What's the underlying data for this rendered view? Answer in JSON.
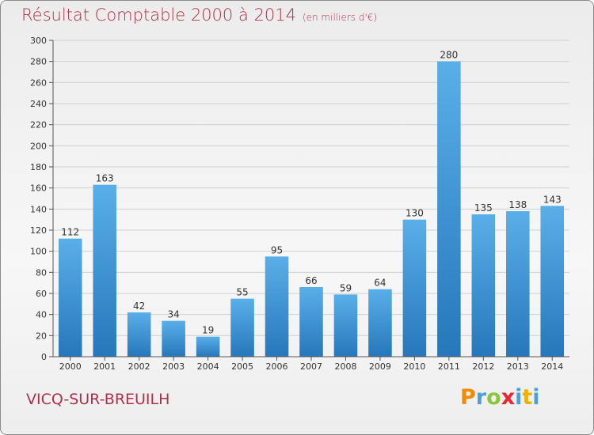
{
  "title": "Résultat Comptable 2000 à 2014",
  "units": "(en milliers d'€)",
  "commune": "VICQ-SUR-BREUILH",
  "logo": {
    "text": "Proxiti",
    "letters": [
      {
        "ch": "P",
        "color": "#f08a00"
      },
      {
        "ch": "r",
        "color": "#4aa0d8"
      },
      {
        "ch": "o",
        "color": "#8cc63e"
      },
      {
        "ch": "x",
        "color": "#e8262f"
      },
      {
        "ch": "i",
        "color": "#4aa0d8"
      },
      {
        "ch": "t",
        "color": "#f0b000"
      },
      {
        "ch": "i",
        "color": "#4aa0d8"
      }
    ]
  },
  "colors": {
    "bar_top": "#5aafe8",
    "bar_bottom": "#2677bb",
    "grid": "#d0d0d0",
    "axis": "#555555",
    "title": "#b0304a"
  },
  "chart_data": {
    "type": "bar",
    "categories": [
      "2000",
      "2001",
      "2002",
      "2003",
      "2004",
      "2005",
      "2006",
      "2007",
      "2008",
      "2009",
      "2010",
      "2011",
      "2012",
      "2013",
      "2014"
    ],
    "values": [
      112,
      163,
      42,
      34,
      19,
      55,
      95,
      66,
      59,
      64,
      130,
      280,
      135,
      138,
      143
    ],
    "title": "Résultat Comptable 2000 à 2014",
    "subtitle": "(en milliers d'€)",
    "ylim": [
      0,
      300
    ],
    "yticks": [
      0,
      20,
      40,
      60,
      80,
      100,
      120,
      140,
      160,
      180,
      200,
      220,
      240,
      260,
      280,
      300
    ],
    "grid": true
  }
}
